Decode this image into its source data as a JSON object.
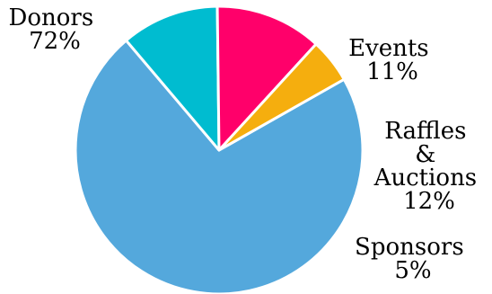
{
  "chart_data": {
    "type": "pie",
    "start_angle_deg": 60.5,
    "direction": "clockwise",
    "slices": [
      {
        "name": "Donors",
        "value": 72,
        "percent_label": "72%",
        "color": "#54A8DC"
      },
      {
        "name": "Events",
        "value": 11,
        "percent_label": "11%",
        "color": "#00BCD0"
      },
      {
        "name": "Raffles & Auctions",
        "value": 12,
        "percent_label": "12%",
        "color": "#FF006A"
      },
      {
        "name": "Sponsors",
        "value": 5,
        "percent_label": "5%",
        "color": "#F5AE0E"
      }
    ],
    "labels": {
      "donors": {
        "lines": [
          "Donors",
          "72%"
        ]
      },
      "events": {
        "lines": [
          "Events",
          "11%"
        ]
      },
      "raffles": {
        "lines": [
          "Raffles",
          "&",
          "Auctions",
          "12%"
        ]
      },
      "sponsors": {
        "lines": [
          "Sponsors",
          "5%"
        ]
      }
    }
  }
}
